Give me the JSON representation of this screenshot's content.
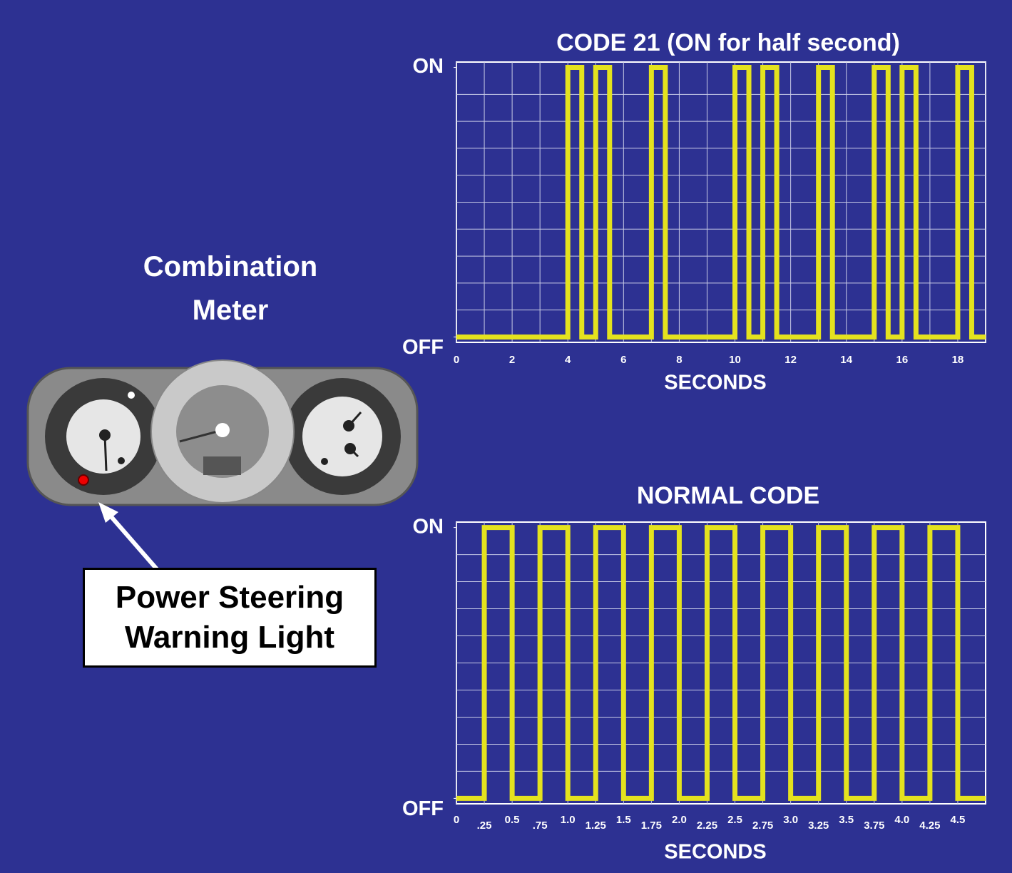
{
  "meter_label": "Combination Meter",
  "callout": "Power Steering Warning Light",
  "chart_data": [
    {
      "type": "line",
      "title": "CODE 21 (ON for half second)",
      "xlabel": "SECONDS",
      "xlim": [
        0,
        19
      ],
      "xticks": [
        0,
        2,
        4,
        6,
        8,
        10,
        12,
        14,
        16,
        18
      ],
      "xminorticks": [
        1,
        3,
        5,
        7,
        9,
        11,
        13,
        15,
        17,
        19
      ],
      "ylim": [
        -0.02,
        1.02
      ],
      "yticks": [
        {
          "value": 0,
          "label": "OFF"
        },
        {
          "value": 1,
          "label": "ON"
        }
      ],
      "yminorticks": [
        0.1,
        0.2,
        0.3,
        0.4,
        0.5,
        0.6,
        0.7,
        0.8,
        0.9
      ],
      "grid": true,
      "series": [
        {
          "color": "#e4e21e",
          "x": [
            0,
            4,
            4,
            4.5,
            4.5,
            5,
            5,
            5.5,
            5.5,
            7,
            7,
            7.5,
            7.5,
            10,
            10,
            10.5,
            10.5,
            11,
            11,
            11.5,
            11.5,
            13,
            13,
            13.5,
            13.5,
            15,
            15,
            15.5,
            15.5,
            16,
            16,
            16.5,
            16.5,
            18,
            18,
            18.5,
            18.5,
            19
          ],
          "values": [
            0,
            0,
            1,
            1,
            0,
            0,
            1,
            1,
            0,
            0,
            1,
            1,
            0,
            0,
            1,
            1,
            0,
            0,
            1,
            1,
            0,
            0,
            1,
            1,
            0,
            0,
            1,
            1,
            0,
            0,
            1,
            1,
            0,
            0,
            1,
            1,
            0,
            0
          ]
        }
      ]
    },
    {
      "type": "line",
      "title": "NORMAL CODE",
      "xlabel": "SECONDS",
      "xlim": [
        0,
        4.75
      ],
      "xticks": [
        0,
        {
          "value": 0.25,
          "label": ".25"
        },
        0.5,
        {
          "value": 0.75,
          "label": ".75"
        },
        {
          "value": 1,
          "label": "1.0"
        },
        1.25,
        1.5,
        1.75,
        {
          "value": 2,
          "label": "2.0"
        },
        2.25,
        2.5,
        2.75,
        {
          "value": 3,
          "label": "3.0"
        },
        3.25,
        3.5,
        3.75,
        {
          "value": 4,
          "label": "4.0"
        },
        4.25,
        4.5
      ],
      "ylim": [
        -0.02,
        1.02
      ],
      "yticks": [
        {
          "value": 0,
          "label": "OFF"
        },
        {
          "value": 1,
          "label": "ON"
        }
      ],
      "yminorticks": [
        0.1,
        0.2,
        0.3,
        0.4,
        0.5,
        0.6,
        0.7,
        0.8,
        0.9
      ],
      "grid": true,
      "series": [
        {
          "color": "#e4e21e",
          "x": [
            0,
            0.25,
            0.25,
            0.5,
            0.5,
            0.75,
            0.75,
            1,
            1,
            1.25,
            1.25,
            1.5,
            1.5,
            1.75,
            1.75,
            2,
            2,
            2.25,
            2.25,
            2.5,
            2.5,
            2.75,
            2.75,
            3,
            3,
            3.25,
            3.25,
            3.5,
            3.5,
            3.75,
            3.75,
            4,
            4,
            4.25,
            4.25,
            4.5,
            4.5,
            4.75
          ],
          "values": [
            0,
            0,
            1,
            1,
            0,
            0,
            1,
            1,
            0,
            0,
            1,
            1,
            0,
            0,
            1,
            1,
            0,
            0,
            1,
            1,
            0,
            0,
            1,
            1,
            0,
            0,
            1,
            1,
            0,
            0,
            1,
            1,
            0,
            0,
            1,
            1,
            0,
            0
          ]
        }
      ]
    }
  ]
}
